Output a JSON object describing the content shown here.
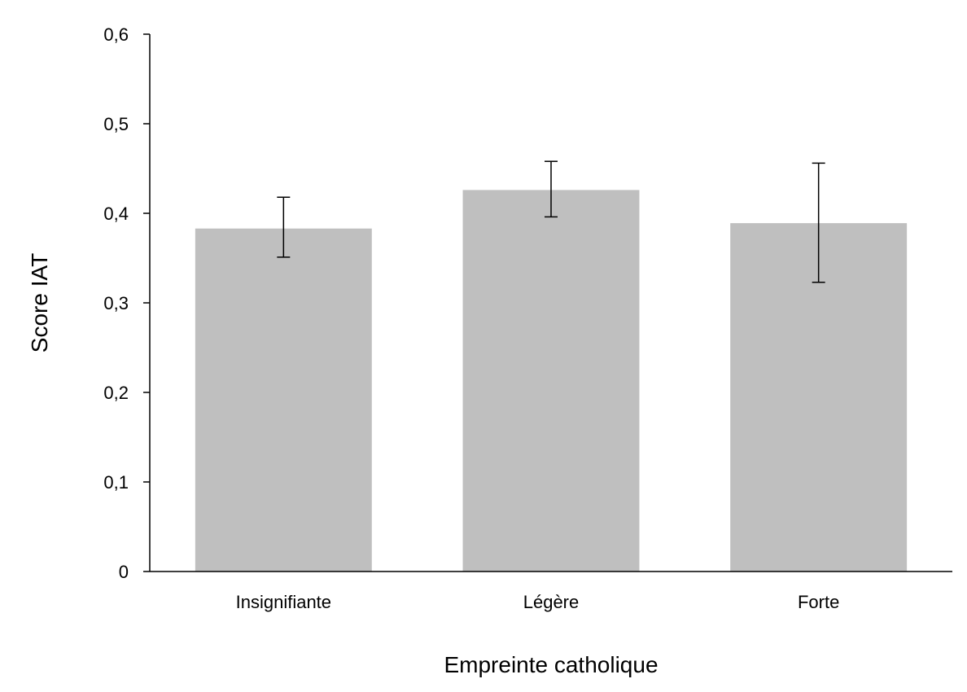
{
  "chart_data": {
    "type": "bar",
    "categories": [
      "Insignifiante",
      "Légère",
      "Forte"
    ],
    "values": [
      0.383,
      0.426,
      0.389
    ],
    "error_bars": [
      {
        "low": 0.351,
        "high": 0.418
      },
      {
        "low": 0.396,
        "high": 0.458
      },
      {
        "low": 0.323,
        "high": 0.456
      }
    ],
    "xlabel": "Empreinte catholique",
    "ylabel": "Score IAT",
    "ylim": [
      0,
      0.6
    ],
    "yticks": [
      0,
      0.1,
      0.2,
      0.3,
      0.4,
      0.5,
      0.6
    ],
    "ytick_labels": [
      "0",
      "0,1",
      "0,2",
      "0,3",
      "0,4",
      "0,5",
      "0,6"
    ],
    "grid": false,
    "legend": "none",
    "colors": {
      "bar": "#bfbfbf",
      "axis": "#000000",
      "error_bar": "#000000"
    }
  }
}
